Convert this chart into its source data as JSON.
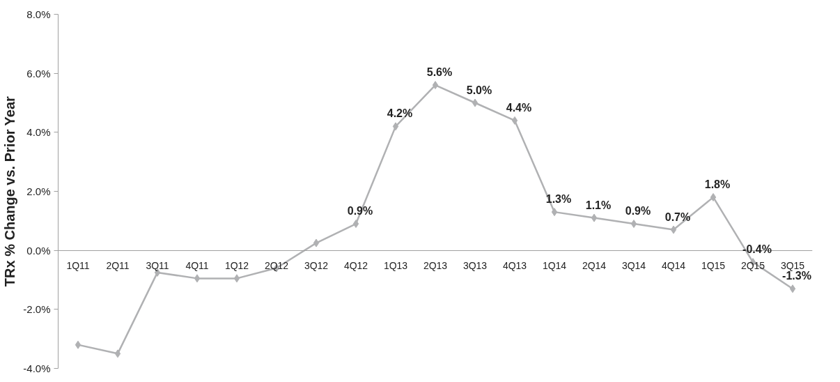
{
  "chart_data": {
    "type": "line",
    "ylabel": "TRx % Change vs. Prior Year",
    "categories": [
      "1Q11",
      "2Q11",
      "3Q11",
      "4Q11",
      "1Q12",
      "2Q12",
      "3Q12",
      "4Q12",
      "1Q13",
      "2Q13",
      "3Q13",
      "4Q13",
      "1Q14",
      "2Q14",
      "3Q14",
      "4Q14",
      "1Q15",
      "2Q15",
      "3Q15"
    ],
    "series": [
      {
        "color": "#b0b1b3",
        "values": [
          -3.2,
          -3.5,
          -0.75,
          -0.95,
          -0.95,
          -0.6,
          0.25,
          0.9,
          4.2,
          5.6,
          5.0,
          4.4,
          1.3,
          1.1,
          0.9,
          0.7,
          1.8,
          -0.4,
          -1.3
        ],
        "value_labels": [
          null,
          null,
          null,
          null,
          null,
          null,
          null,
          "0.9%",
          "4.2%",
          "5.6%",
          "5.0%",
          "4.4%",
          "1.3%",
          "1.1%",
          "0.9%",
          "0.7%",
          "1.8%",
          "-0.4%",
          "-1.3%"
        ]
      }
    ],
    "ylim": [
      -4,
      8
    ],
    "yticks": [
      {
        "value": -4,
        "label": "-4.0%"
      },
      {
        "value": -2,
        "label": "-2.0%"
      },
      {
        "value": 0,
        "label": "0.0%"
      },
      {
        "value": 2,
        "label": "2.0%"
      },
      {
        "value": 4,
        "label": "4.0%"
      },
      {
        "value": 6,
        "label": "6.0%"
      },
      {
        "value": 8,
        "label": "8.0%"
      }
    ],
    "grid": false,
    "marker": "diamond",
    "line_style": "solid"
  }
}
